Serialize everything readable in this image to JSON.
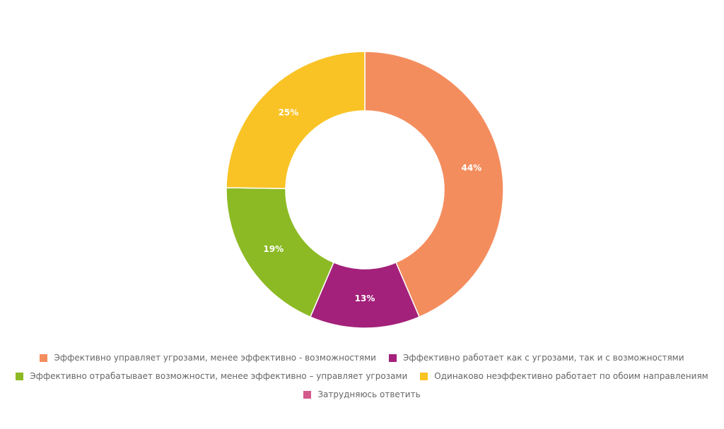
{
  "chart_data": {
    "type": "pie",
    "variant": "donut",
    "unit": "%",
    "slices": [
      {
        "label": "Эффективно управляет угрозами, менее эффективно - возможностями",
        "value": 44,
        "value_label": "44%",
        "color": "#f48d5e"
      },
      {
        "label": "Эффективно работает как с угрозами, так и с возможностями",
        "value": 13,
        "value_label": "13%",
        "color": "#a3217a"
      },
      {
        "label": "Эффективно отрабатывает возможности, менее эффективно – управляет угрозами",
        "value": 19,
        "value_label": "19%",
        "color": "#8cba24"
      },
      {
        "label": "Одинаково неэффективно работает по обоим направлениям",
        "value": 25,
        "value_label": "25%",
        "color": "#f9c325"
      },
      {
        "label": "Затрудняюсь ответить",
        "value": 0,
        "value_label": "",
        "color": "#d3598d"
      }
    ],
    "legend_position": "bottom"
  }
}
